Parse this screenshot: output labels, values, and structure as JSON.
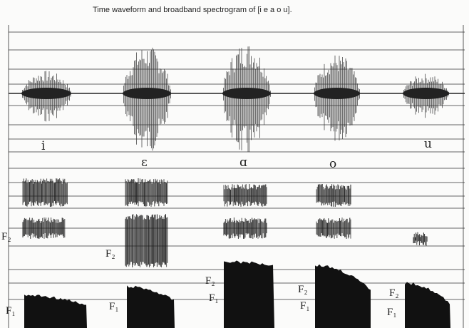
{
  "title": "Time waveform and broadband spectrogram of   [i e a o u].",
  "vowels": [
    "i",
    "ɛ",
    "ɑ",
    "o",
    "u"
  ],
  "formant_labels": [
    "F₂",
    "F₂",
    "F₂",
    "F₁",
    "F₂",
    "F₁",
    "F₂",
    "F₁",
    "F₁",
    "F₁"
  ]
}
